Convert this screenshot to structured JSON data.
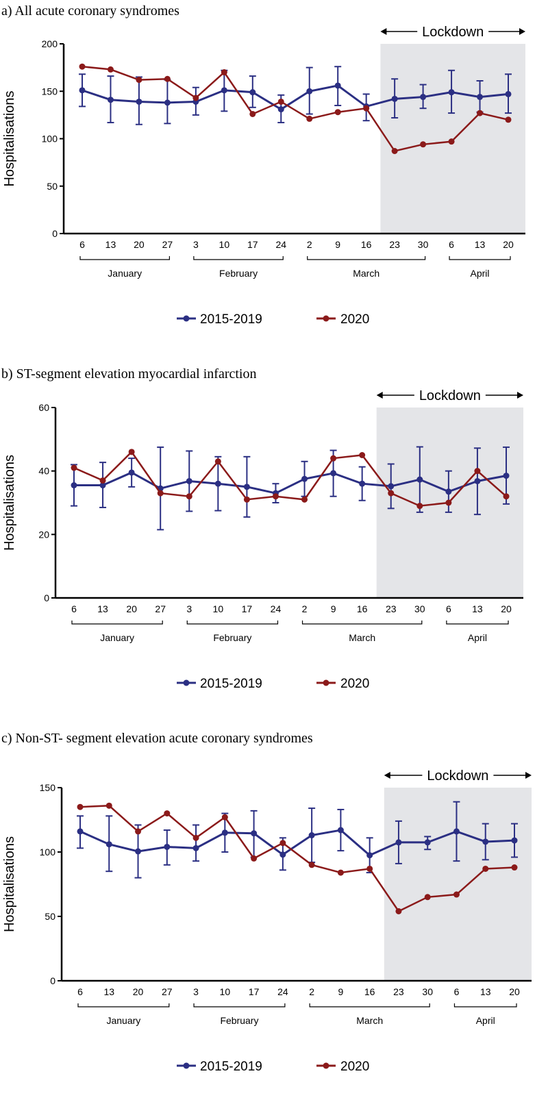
{
  "colors": {
    "series_2015_2019": "#2b2f83",
    "series_2020": "#8b1a1a",
    "lockdown_shade": "#e4e5e8"
  },
  "x_tick_labels": [
    "6",
    "13",
    "20",
    "27",
    "3",
    "10",
    "17",
    "24",
    "2",
    "9",
    "16",
    "23",
    "30",
    "6",
    "13",
    "20"
  ],
  "months": [
    {
      "label": "January",
      "from_index": 0,
      "to_index": 3
    },
    {
      "label": "February",
      "from_index": 4,
      "to_index": 7
    },
    {
      "label": "March",
      "from_index": 8,
      "to_index": 12
    },
    {
      "label": "April",
      "from_index": 13,
      "to_index": 15
    }
  ],
  "lockdown_label": "Lockdown",
  "lockdown_start_after_index": 10,
  "legend": [
    "2015-2019",
    "2020"
  ],
  "chart_data": [
    {
      "type": "line",
      "title": "a) All acute coronary syndromes",
      "ylabel": "Hospitalisations",
      "ylim": [
        0,
        200
      ],
      "yticks": [
        0,
        50,
        100,
        150,
        200
      ],
      "series": [
        {
          "name": "2015-2019",
          "values": [
            151,
            141,
            139,
            138,
            139,
            151,
            149,
            131,
            150,
            156,
            134,
            142,
            144,
            149,
            144,
            147
          ],
          "error_upper": [
            168,
            166,
            165,
            162,
            154,
            172,
            166,
            146,
            175,
            176,
            147,
            163,
            157,
            172,
            161,
            168
          ],
          "error_lower": [
            134,
            117,
            115,
            116,
            125,
            129,
            133,
            117,
            126,
            135,
            119,
            122,
            132,
            127,
            128,
            127
          ]
        },
        {
          "name": "2020",
          "values": [
            176,
            173,
            162,
            163,
            143,
            170,
            126,
            139,
            121,
            128,
            132,
            87,
            94,
            97,
            127,
            120
          ]
        }
      ]
    },
    {
      "type": "line",
      "title": "b) ST-segment elevation myocardial infarction",
      "ylabel": "Hospitalisations",
      "ylim": [
        0,
        60
      ],
      "yticks": [
        0,
        20,
        40,
        60
      ],
      "series": [
        {
          "name": "2015-2019",
          "values": [
            35.5,
            35.5,
            39.5,
            34.5,
            36.8,
            36,
            35,
            33,
            37.5,
            39.3,
            36,
            35.2,
            37.3,
            33.5,
            36.8,
            38.5
          ],
          "error_upper": [
            42,
            42.7,
            44,
            47.5,
            46.3,
            44.5,
            44.5,
            36,
            43,
            46.5,
            41.3,
            42.2,
            47.6,
            40,
            47.2,
            47.5
          ],
          "error_lower": [
            29,
            28.5,
            35,
            21.5,
            27.3,
            27.5,
            25.5,
            30,
            32,
            32,
            30.7,
            28.2,
            27,
            27,
            26.3,
            29.6
          ]
        },
        {
          "name": "2020",
          "values": [
            41,
            37,
            46,
            33,
            32,
            43,
            31,
            32,
            31,
            44,
            45,
            33,
            29,
            30,
            40,
            32
          ]
        }
      ]
    },
    {
      "type": "line",
      "title": "c) Non-ST- segment elevation acute coronary syndromes",
      "ylabel": "Hospitalisations",
      "ylim": [
        0,
        150
      ],
      "yticks": [
        0,
        50,
        100,
        150
      ],
      "series": [
        {
          "name": "2015-2019",
          "values": [
            116,
            106,
            100.5,
            104,
            103,
            115,
            114.5,
            98,
            113,
            117,
            97.5,
            107.5,
            107.5,
            116,
            108,
            109
          ],
          "error_upper": [
            128,
            128,
            121,
            117,
            121,
            130,
            132,
            111,
            134,
            133,
            111,
            124,
            112,
            139,
            122,
            122
          ],
          "error_lower": [
            103,
            85,
            80,
            90,
            93,
            100,
            96,
            86,
            92,
            101,
            84,
            91,
            102,
            93,
            94,
            96
          ]
        },
        {
          "name": "2020",
          "values": [
            135,
            136,
            116,
            130,
            111,
            127,
            95,
            107,
            90,
            84,
            87,
            54,
            65,
            67,
            87,
            88
          ]
        }
      ]
    }
  ]
}
